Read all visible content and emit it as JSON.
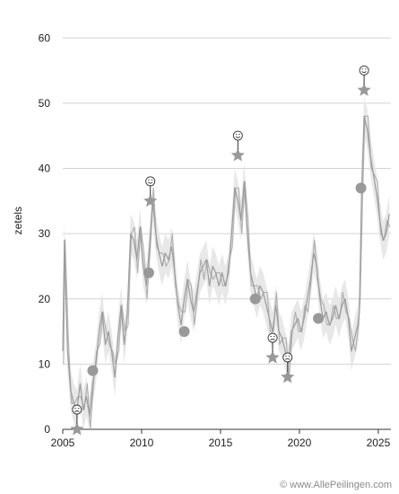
{
  "chart_data": {
    "type": "line",
    "title": "",
    "xlabel": "",
    "ylabel": "zetels",
    "xlim": [
      2005.0,
      2025.8
    ],
    "ylim": [
      0,
      65
    ],
    "yticks": [
      0,
      10,
      20,
      30,
      40,
      50,
      60
    ],
    "xticks": [
      2005,
      2010,
      2015,
      2020,
      2025
    ],
    "grid": true,
    "series": [
      {
        "points": [
          [
            2005.0,
            12
          ],
          [
            2005.1,
            29
          ],
          [
            2005.3,
            12
          ],
          [
            2005.5,
            6
          ],
          [
            2005.7,
            4
          ],
          [
            2005.9,
            3
          ],
          [
            2006.1,
            7
          ],
          [
            2006.3,
            3
          ],
          [
            2006.5,
            5
          ],
          [
            2006.7,
            2
          ],
          [
            2006.9,
            7
          ],
          [
            2007.1,
            10
          ],
          [
            2007.3,
            15
          ],
          [
            2007.5,
            18
          ],
          [
            2007.7,
            13
          ],
          [
            2007.9,
            15
          ],
          [
            2008.1,
            12
          ],
          [
            2008.3,
            8
          ],
          [
            2008.5,
            14
          ],
          [
            2008.7,
            19
          ],
          [
            2008.9,
            13
          ],
          [
            2009.1,
            18
          ],
          [
            2009.3,
            30
          ],
          [
            2009.5,
            29
          ],
          [
            2009.7,
            26
          ],
          [
            2009.9,
            31
          ],
          [
            2010.1,
            25
          ],
          [
            2010.3,
            22
          ],
          [
            2010.5,
            28
          ],
          [
            2010.7,
            35
          ],
          [
            2010.9,
            30
          ],
          [
            2011.1,
            27
          ],
          [
            2011.3,
            25
          ],
          [
            2011.5,
            27
          ],
          [
            2011.7,
            26
          ],
          [
            2011.9,
            28
          ],
          [
            2012.1,
            24
          ],
          [
            2012.3,
            19
          ],
          [
            2012.5,
            16
          ],
          [
            2012.7,
            20
          ],
          [
            2012.9,
            23
          ],
          [
            2013.1,
            20
          ],
          [
            2013.3,
            18
          ],
          [
            2013.5,
            21
          ],
          [
            2013.7,
            24
          ],
          [
            2013.9,
            25
          ],
          [
            2014.1,
            26
          ],
          [
            2014.3,
            22
          ],
          [
            2014.5,
            25
          ],
          [
            2014.7,
            24
          ],
          [
            2014.9,
            22
          ],
          [
            2015.1,
            24
          ],
          [
            2015.3,
            22
          ],
          [
            2015.5,
            24
          ],
          [
            2015.7,
            30
          ],
          [
            2015.9,
            37
          ],
          [
            2016.1,
            35
          ],
          [
            2016.3,
            32
          ],
          [
            2016.5,
            38
          ],
          [
            2016.7,
            30
          ],
          [
            2016.9,
            24
          ],
          [
            2017.1,
            22
          ],
          [
            2017.3,
            20
          ],
          [
            2017.5,
            22
          ],
          [
            2017.7,
            21
          ],
          [
            2017.9,
            19
          ],
          [
            2018.1,
            17
          ],
          [
            2018.3,
            15
          ],
          [
            2018.5,
            19
          ],
          [
            2018.7,
            15
          ],
          [
            2018.9,
            14
          ],
          [
            2019.1,
            12
          ],
          [
            2019.3,
            10
          ],
          [
            2019.5,
            15
          ],
          [
            2019.7,
            16
          ],
          [
            2019.9,
            17
          ],
          [
            2020.1,
            15
          ],
          [
            2020.3,
            17
          ],
          [
            2020.5,
            20
          ],
          [
            2020.7,
            23
          ],
          [
            2020.9,
            27
          ],
          [
            2021.1,
            25
          ],
          [
            2021.3,
            20
          ],
          [
            2021.5,
            17
          ],
          [
            2021.7,
            18
          ],
          [
            2021.9,
            16
          ],
          [
            2022.1,
            17
          ],
          [
            2022.3,
            19
          ],
          [
            2022.5,
            17
          ],
          [
            2022.7,
            19
          ],
          [
            2022.9,
            20
          ],
          [
            2023.1,
            17
          ],
          [
            2023.3,
            12
          ],
          [
            2023.5,
            14
          ],
          [
            2023.7,
            16
          ],
          [
            2023.8,
            18
          ],
          [
            2023.95,
            37
          ],
          [
            2024.1,
            48
          ],
          [
            2024.3,
            46
          ],
          [
            2024.5,
            42
          ],
          [
            2024.7,
            39
          ],
          [
            2024.9,
            36
          ],
          [
            2025.1,
            32
          ],
          [
            2025.3,
            29
          ],
          [
            2025.5,
            30
          ],
          [
            2025.7,
            33
          ]
        ]
      }
    ],
    "elections": [
      {
        "x": 2005.9,
        "y": 0,
        "shape": "star",
        "face": "frown"
      },
      {
        "x": 2006.9,
        "y": 9,
        "shape": "circle",
        "face": ""
      },
      {
        "x": 2010.45,
        "y": 24,
        "shape": "circle",
        "face": ""
      },
      {
        "x": 2010.55,
        "y": 35,
        "shape": "star",
        "face": "smile"
      },
      {
        "x": 2012.7,
        "y": 15,
        "shape": "circle",
        "face": ""
      },
      {
        "x": 2016.1,
        "y": 42,
        "shape": "star",
        "face": "smile"
      },
      {
        "x": 2017.2,
        "y": 20,
        "shape": "circle",
        "face": ""
      },
      {
        "x": 2018.3,
        "y": 11,
        "shape": "star",
        "face": "frown"
      },
      {
        "x": 2019.25,
        "y": 8,
        "shape": "star",
        "face": "frown"
      },
      {
        "x": 2021.2,
        "y": 17,
        "shape": "circle",
        "face": ""
      },
      {
        "x": 2023.9,
        "y": 37,
        "shape": "circle",
        "face": ""
      },
      {
        "x": 2024.1,
        "y": 52,
        "shape": "star",
        "face": "smile"
      }
    ]
  },
  "footer": "© www.AllePeilingen.com"
}
